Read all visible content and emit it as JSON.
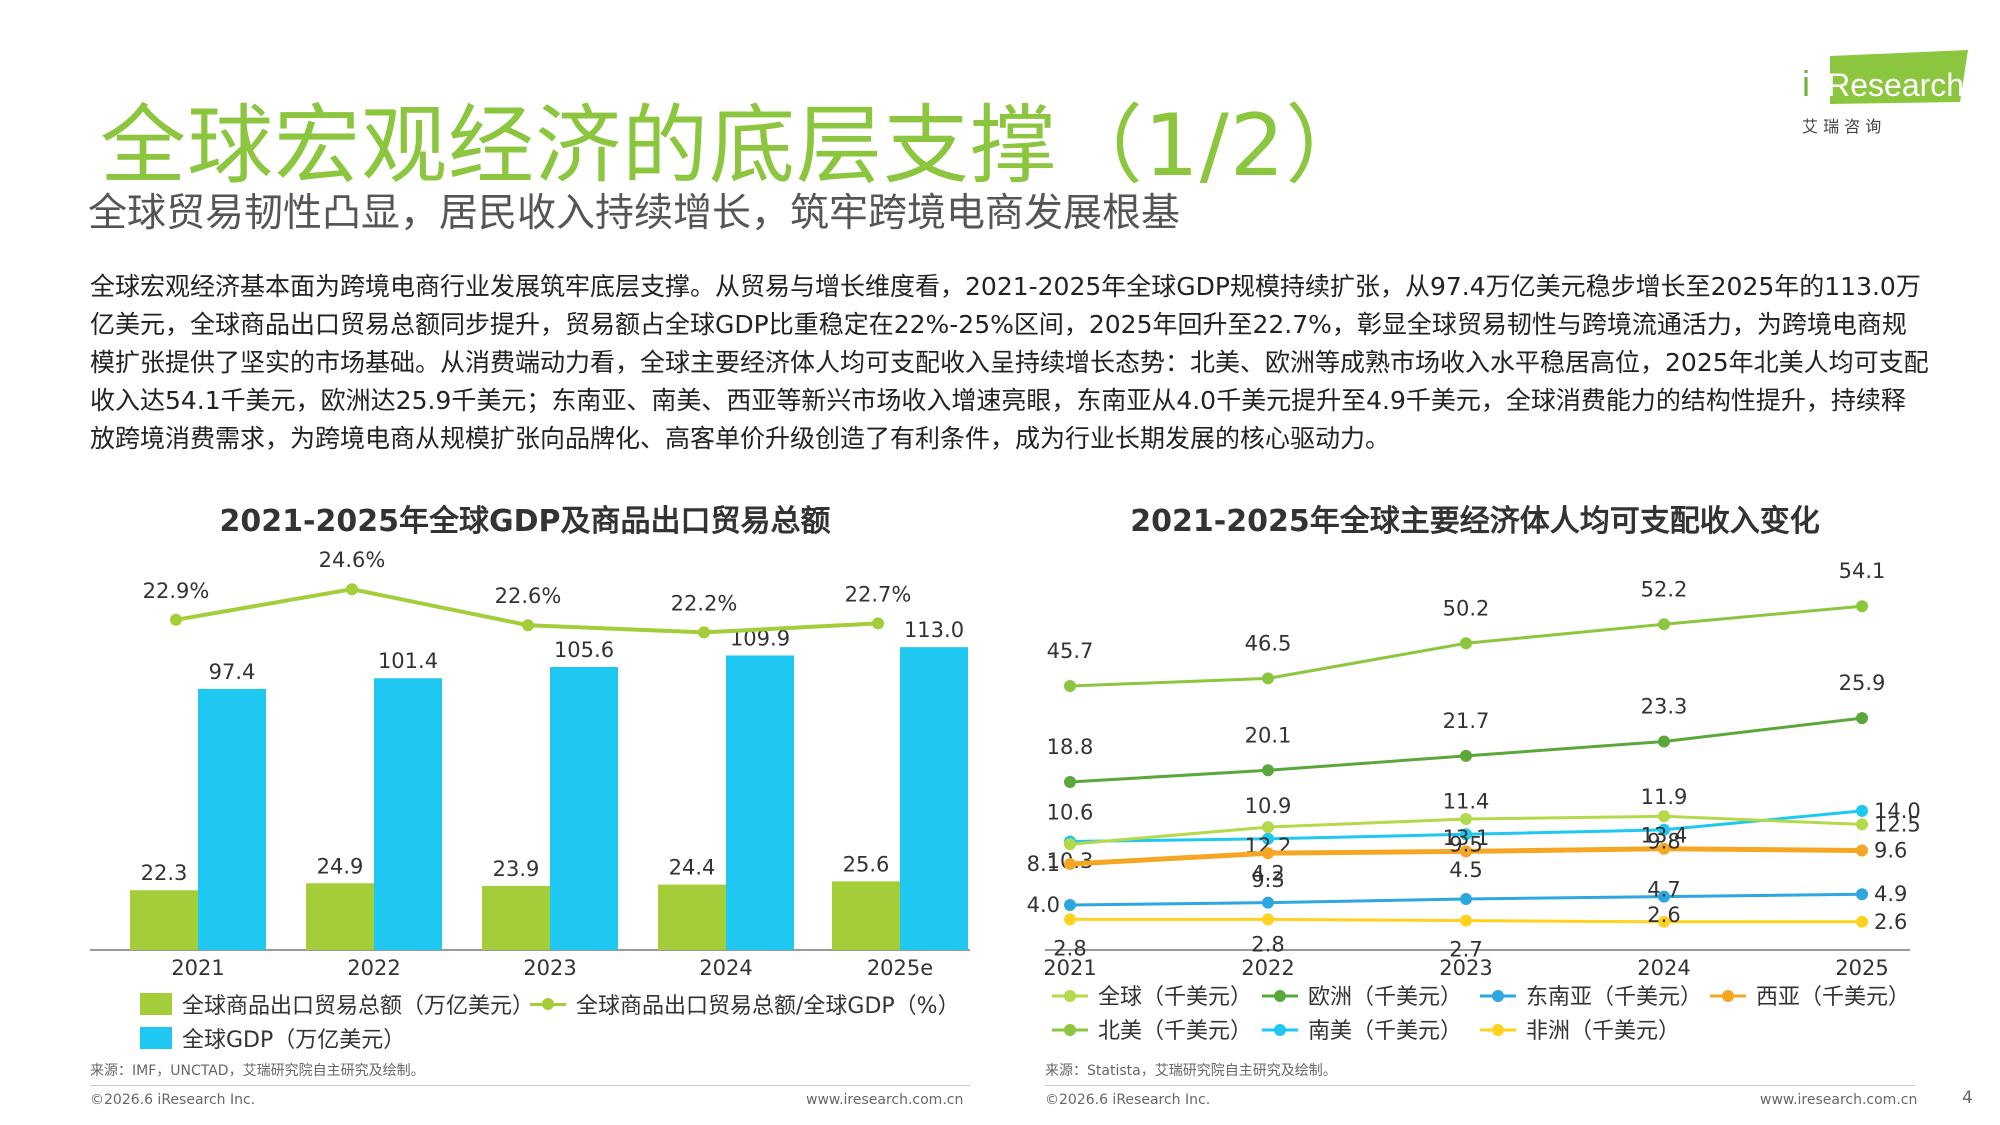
{
  "header": {
    "title": "全球宏观经济的底层支撑（1/2）",
    "subtitle": "全球贸易韧性凸显，居民收入持续增长，筑牢跨境电商发展根基",
    "logo_text": "iResearch",
    "logo_cn": "艾 瑞 咨 询"
  },
  "body_text": "全球宏观经济基本面为跨境电商行业发展筑牢底层支撑。从贸易与增长维度看，2021-2025年全球GDP规模持续扩张，从97.4万亿美元稳步增长至2025年的113.0万亿美元，全球商品出口贸易总额同步提升，贸易额占全球GDP比重稳定在22%-25%区间，2025年回升至22.7%，彰显全球贸易韧性与跨境流通活力，为跨境电商规模扩张提供了坚实的市场基础。从消费端动力看，全球主要经济体人均可支配收入呈持续增长态势：北美、欧洲等成熟市场收入水平稳居高位，2025年北美人均可支配收入达54.1千美元，欧洲达25.9千美元；东南亚、南美、西亚等新兴市场收入增速亮眼，东南亚从4.0千美元提升至4.9千美元，全球消费能力的结构性提升，持续释放跨境消费需求，为跨境电商从规模扩张向品牌化、高客单价升级创造了有利条件，成为行业长期发展的核心驱动力。",
  "left_source": "来源：IMF，UNCTAD，艾瑞研究院自主研究及绘制。",
  "right_source": "来源：Statista，艾瑞研究院自主研究及绘制。",
  "footer": {
    "copyright": "©2026.6 iResearch Inc.",
    "url": "www.iresearch.com.cn",
    "page": "4"
  },
  "colors": {
    "brand_green": "#8cc63f",
    "export_bar": "#a4cd3a",
    "gdp_bar": "#1ec8f0",
    "ratio_line": "#a4cd3a"
  },
  "chart_data": [
    {
      "type": "bar",
      "title": "2021-2025年全球GDP及商品出口贸易总额",
      "categories": [
        "2021",
        "2022",
        "2023",
        "2024",
        "2025e"
      ],
      "series": [
        {
          "name": "全球商品出口贸易总额（万亿美元）",
          "values": [
            22.3,
            24.9,
            23.9,
            24.4,
            25.6
          ],
          "labels": [
            "22.3",
            "24.9",
            "23.9",
            "24.4",
            "25.6"
          ],
          "color": "#a4cd3a"
        },
        {
          "name": "全球GDP（万亿美元）",
          "values": [
            97.4,
            101.4,
            105.6,
            109.9,
            113.0
          ],
          "labels": [
            "97.4",
            "101.4",
            "105.6",
            "109.9",
            "113.0"
          ],
          "color": "#1ec8f0"
        }
      ],
      "line_series": {
        "name": "全球商品出口贸易总额/全球GDP（%）",
        "values": [
          22.9,
          24.6,
          22.6,
          22.2,
          22.7
        ],
        "labels": [
          "22.9%",
          "24.6%",
          "22.6%",
          "22.2%",
          "22.7%"
        ],
        "color": "#a4cd3a"
      }
    },
    {
      "type": "line",
      "title": "2021-2025年全球主要经济体人均可支配收入变化",
      "categories": [
        "2021",
        "2022",
        "2023",
        "2024",
        "2025"
      ],
      "series": [
        {
          "name": "北美（千美元）",
          "values": [
            45.7,
            46.5,
            50.2,
            52.2,
            54.1
          ],
          "labels": [
            "45.7",
            "46.5",
            "50.2",
            "52.2",
            "54.1"
          ],
          "color": "#8cc63f"
        },
        {
          "name": "欧洲（千美元）",
          "values": [
            18.8,
            20.1,
            21.7,
            23.3,
            25.9
          ],
          "labels": [
            "18.8",
            "20.1",
            "21.7",
            "23.3",
            "25.9"
          ],
          "color": "#5aa83a"
        },
        {
          "name": "南美（千美元）",
          "values": [
            10.6,
            10.9,
            11.4,
            11.9,
            14.0
          ],
          "labels": [
            "10.6",
            "10.9",
            "11.4",
            "11.9",
            "14.0"
          ],
          "color": "#1ec8f0"
        },
        {
          "name": "全球（千美元）",
          "values": [
            10.3,
            12.2,
            13.1,
            13.4,
            12.5
          ],
          "labels": [
            "10.3",
            "12.2",
            "13.1",
            "13.4",
            "12.5"
          ],
          "color": "#b4d94a"
        },
        {
          "name": "西亚（千美元）",
          "values": [
            8.1,
            9.3,
            9.5,
            9.8,
            9.6
          ],
          "labels": [
            "8.1",
            "9.3",
            "9.5",
            "9.8",
            "9.6"
          ],
          "color": "#f5a623"
        },
        {
          "name": "东南亚（千美元）",
          "values": [
            4.0,
            4.2,
            4.5,
            4.7,
            4.9
          ],
          "labels": [
            "4.0",
            "4.2",
            "4.5",
            "4.7",
            "4.9"
          ],
          "color": "#2ea7e0"
        },
        {
          "name": "非洲（千美元）",
          "values": [
            2.8,
            2.8,
            2.7,
            2.6,
            2.6
          ],
          "labels": [
            "2.8",
            "2.8",
            "2.7",
            "2.6",
            "2.6"
          ],
          "color": "#ffd21f"
        }
      ]
    }
  ]
}
